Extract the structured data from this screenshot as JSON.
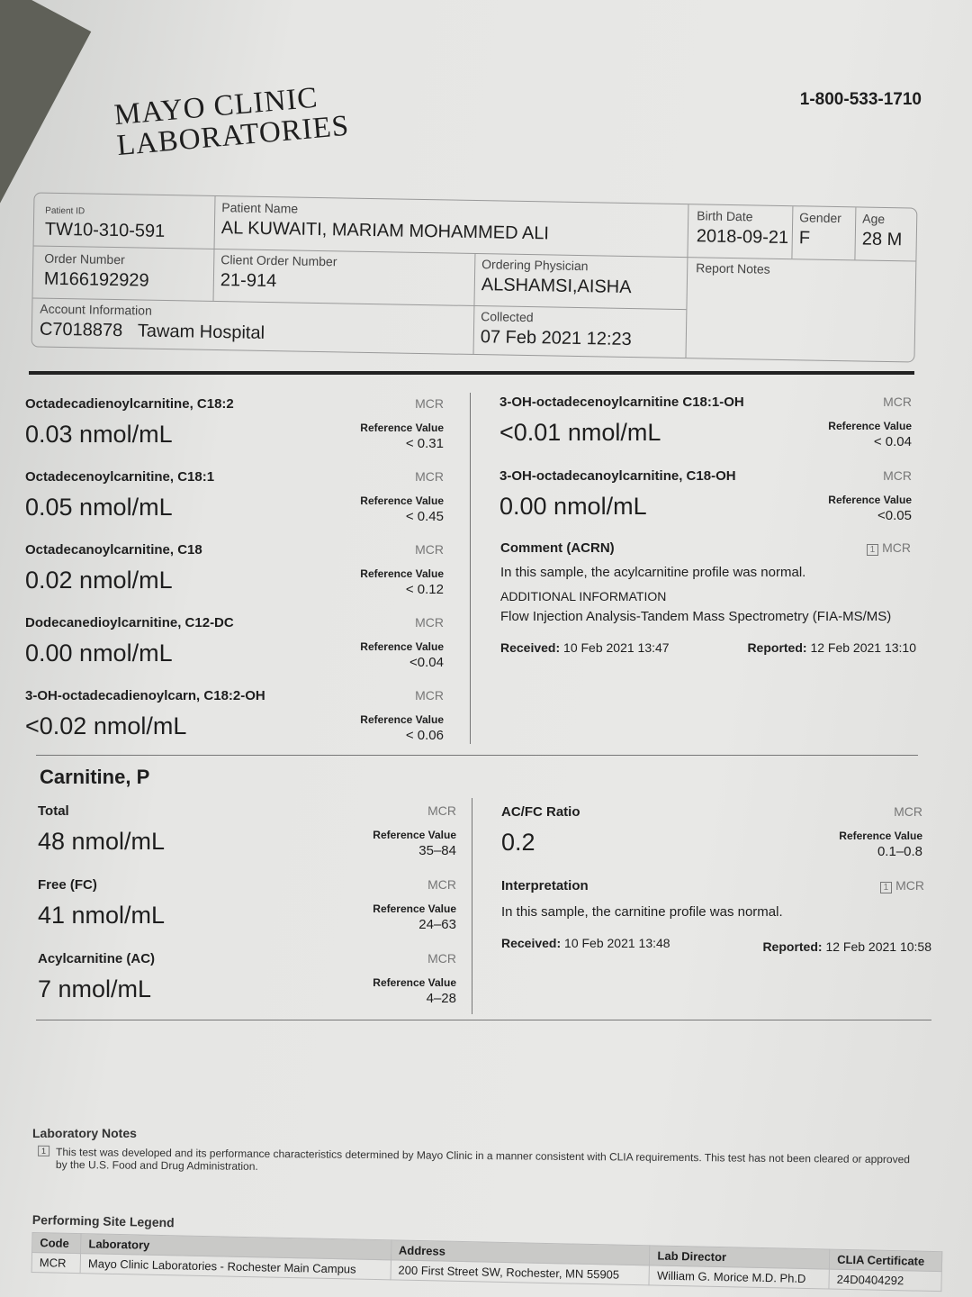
{
  "header": {
    "logo_line1": "MAYO CLINIC",
    "logo_line2": "LABORATORIES",
    "phone": "1-800-533-1710"
  },
  "patient": {
    "patient_id_label": "Patient ID",
    "patient_id": "TW10-310-591",
    "name_label": "Patient Name",
    "name": "AL KUWAITI, MARIAM MOHAMMED ALI",
    "birth_label": "Birth Date",
    "birth": "2018-09-21",
    "gender_label": "Gender",
    "gender": "F",
    "age_label": "Age",
    "age": "28 M",
    "order_label": "Order Number",
    "order": "M166192929",
    "client_order_label": "Client Order Number",
    "client_order": "21-914",
    "physician_label": "Ordering Physician",
    "physician": "ALSHAMSI,AISHA",
    "notes_label": "Report Notes",
    "account_label": "Account Information",
    "account_id": "C7018878",
    "account_name": "Tawam Hospital",
    "collected_label": "Collected",
    "collected": "07 Feb 2021 12:23"
  },
  "acyl_left": [
    {
      "name": "Octadecadienoylcarnitine, C18:2",
      "value": "0.03 nmol/mL",
      "site": "MCR",
      "ref_label": "Reference Value",
      "ref": "< 0.31"
    },
    {
      "name": "Octadecenoylcarnitine, C18:1",
      "value": "0.05 nmol/mL",
      "site": "MCR",
      "ref_label": "Reference Value",
      "ref": "< 0.45"
    },
    {
      "name": "Octadecanoylcarnitine, C18",
      "value": "0.02 nmol/mL",
      "site": "MCR",
      "ref_label": "Reference Value",
      "ref": "< 0.12"
    },
    {
      "name": "Dodecanedioylcarnitine, C12-DC",
      "value": "0.00 nmol/mL",
      "site": "MCR",
      "ref_label": "Reference Value",
      "ref": "<0.04"
    },
    {
      "name": "3-OH-octadecadienoylcarn, C18:2-OH",
      "value": "<0.02 nmol/mL",
      "site": "MCR",
      "ref_label": "Reference Value",
      "ref": "< 0.06"
    }
  ],
  "acyl_right": [
    {
      "name": "3-OH-octadecenoylcarnitine C18:1-OH",
      "value": "<0.01 nmol/mL",
      "site": "MCR",
      "ref_label": "Reference Value",
      "ref": "< 0.04"
    },
    {
      "name": "3-OH-octadecanoylcarnitine, C18-OH",
      "value": "0.00 nmol/mL",
      "site": "MCR",
      "ref_label": "Reference Value",
      "ref": "<0.05"
    }
  ],
  "acyl_comment": {
    "title": "Comment (ACRN)",
    "note": "1",
    "site": "MCR",
    "text": "In this sample, the acylcarnitine profile was normal.",
    "add_title": "ADDITIONAL INFORMATION",
    "add_text": "Flow Injection Analysis-Tandem Mass Spectrometry (FIA-MS/MS)",
    "received_label": "Received:",
    "received": "10 Feb 2021 13:47",
    "reported_label": "Reported:",
    "reported": "12 Feb 2021 13:10"
  },
  "carnitine": {
    "title": "Carnitine, P",
    "left": [
      {
        "name": "Total",
        "value": "48 nmol/mL",
        "site": "MCR",
        "ref_label": "Reference Value",
        "ref": "35–84"
      },
      {
        "name": "Free (FC)",
        "value": "41 nmol/mL",
        "site": "MCR",
        "ref_label": "Reference Value",
        "ref": "24–63"
      },
      {
        "name": "Acylcarnitine (AC)",
        "value": "7 nmol/mL",
        "site": "MCR",
        "ref_label": "Reference Value",
        "ref": "4–28"
      }
    ],
    "ratio": {
      "name": "AC/FC Ratio",
      "value": "0.2",
      "site": "MCR",
      "ref_label": "Reference Value",
      "ref": "0.1–0.8"
    },
    "interp": {
      "title": "Interpretation",
      "note": "1",
      "site": "MCR",
      "text": "In this sample, the carnitine profile was normal.",
      "received_label": "Received:",
      "received": "10 Feb 2021 13:48",
      "reported_label": "Reported:",
      "reported": "12 Feb 2021 10:58"
    }
  },
  "lab_notes": {
    "title": "Laboratory Notes",
    "note_num": "1",
    "text": "This test was developed and its performance characteristics determined by Mayo Clinic in a manner consistent with CLIA requirements. This test has not been cleared or approved by the U.S. Food and Drug Administration."
  },
  "site_legend": {
    "title": "Performing Site Legend",
    "headers": [
      "Code",
      "Laboratory",
      "Address",
      "Lab Director",
      "CLIA Certificate"
    ],
    "rows": [
      [
        "MCR",
        "Mayo Clinic Laboratories - Rochester Main Campus",
        "200 First Street SW, Rochester, MN 55905",
        "William G. Morice M.D. Ph.D",
        "24D0404292"
      ]
    ]
  }
}
